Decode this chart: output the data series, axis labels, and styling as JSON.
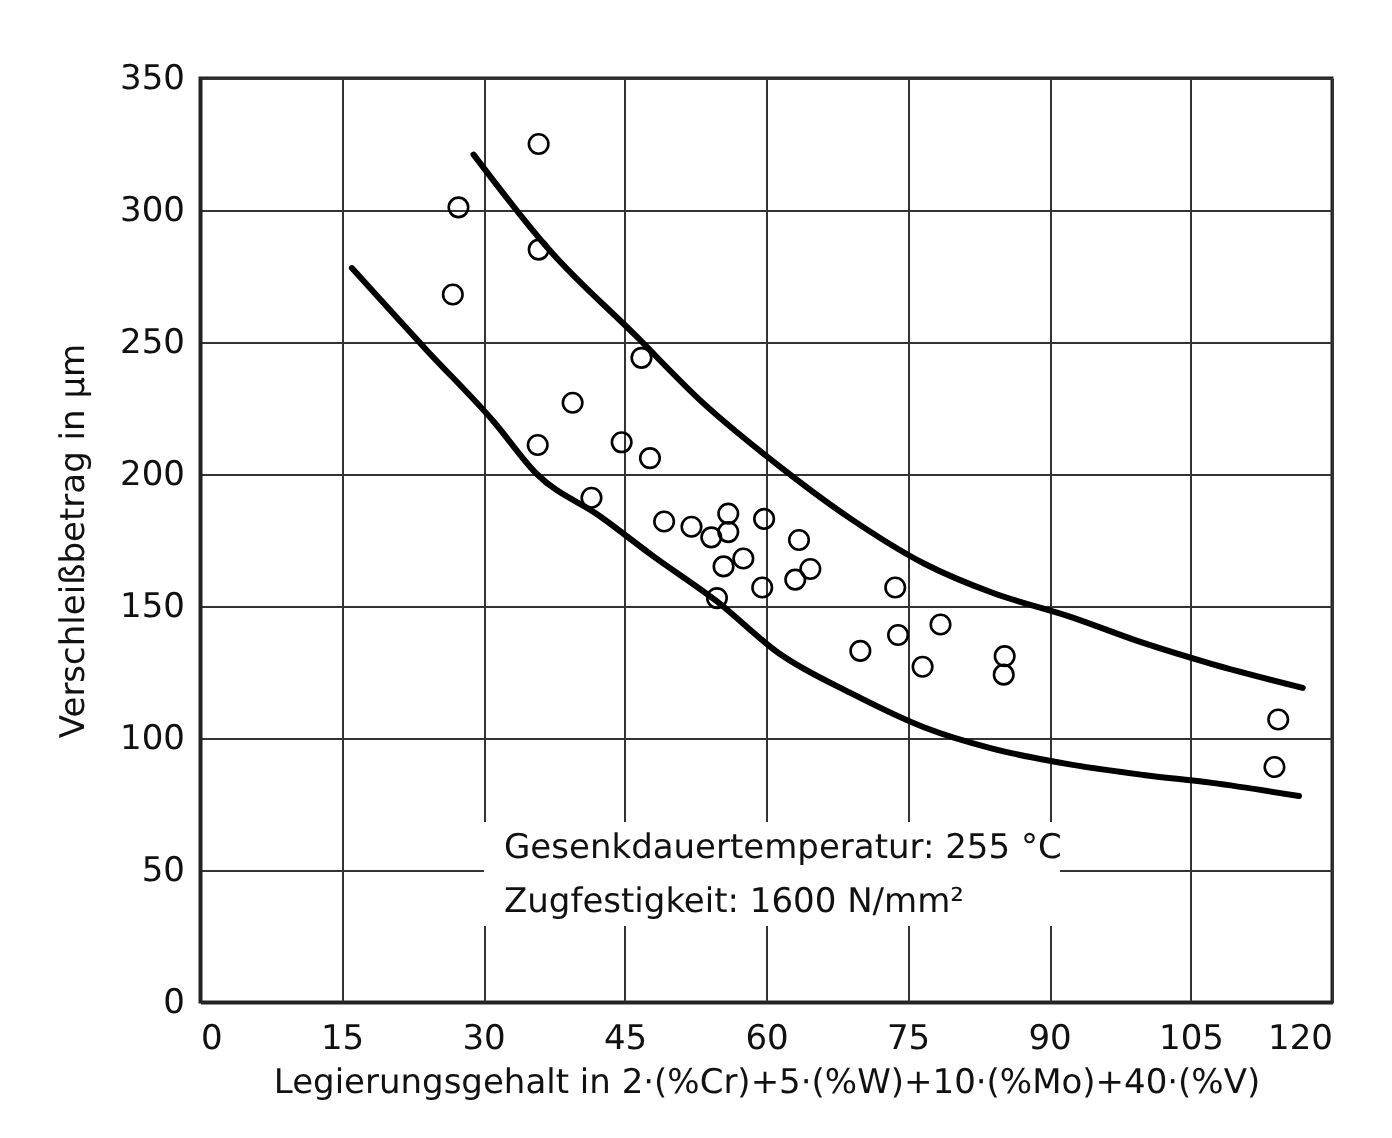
{
  "chart_data": {
    "type": "scatter",
    "xlabel": "Legierungsgehalt in 2·(%Cr)+5·(%W)+10·(%Mo)+40·(%V)",
    "ylabel": "Verschleißbetrag in µm",
    "xlim": [
      0,
      120
    ],
    "xticks": [
      0,
      15,
      30,
      45,
      60,
      75,
      90,
      105,
      120
    ],
    "ylim": [
      0,
      350
    ],
    "yticks": [
      0,
      50,
      100,
      150,
      200,
      250,
      300,
      350
    ],
    "grid": true,
    "annotations": [
      "Gesenkdauertemperatur: 255 °C",
      "Zugfestigkeit: 1600 N/mm²"
    ],
    "series": [
      {
        "marker": "circle",
        "color": "#000000",
        "x": [
          35.9,
          27.4,
          35.9,
          26.8,
          46.8,
          39.5,
          35.8,
          44.7,
          47.7,
          41.5,
          49.2,
          52.1,
          54.2,
          56,
          56,
          59.8,
          55.5,
          57.6,
          54.8,
          59.6,
          63.5,
          64.7,
          63.1,
          73.7,
          74,
          78.5,
          70,
          76.6,
          85.3,
          85.2,
          114.3,
          113.9
        ],
        "values": [
          325,
          301,
          285,
          268,
          244,
          227,
          211,
          212,
          206,
          191,
          182,
          180,
          176,
          185,
          178,
          183,
          165,
          168,
          153,
          157,
          175,
          164,
          160,
          157,
          139,
          143,
          133,
          127,
          131,
          124,
          107,
          89
        ]
      },
      {
        "type": "line",
        "marker": "none",
        "color": "#000000",
        "line_style": "solid",
        "x": [
          29,
          37,
          46.3,
          53,
          61.4,
          69,
          76.8,
          84,
          92.2,
          100,
          107.3,
          116.9
        ],
        "values": [
          321,
          285,
          252,
          228,
          203,
          183,
          166,
          155,
          146,
          136,
          128,
          119
        ]
      },
      {
        "type": "line",
        "marker": "none",
        "color": "#000000",
        "line_style": "solid",
        "x": [
          16.1,
          24,
          31.1,
          35.7,
          42.4,
          48,
          54.7,
          61.4,
          69,
          76.8,
          84,
          92.2,
          100,
          107.3,
          116.5
        ],
        "values": [
          278,
          247,
          220,
          200,
          184,
          169,
          152,
          132,
          117,
          104,
          96,
          90,
          86,
          83,
          78
        ]
      }
    ]
  }
}
